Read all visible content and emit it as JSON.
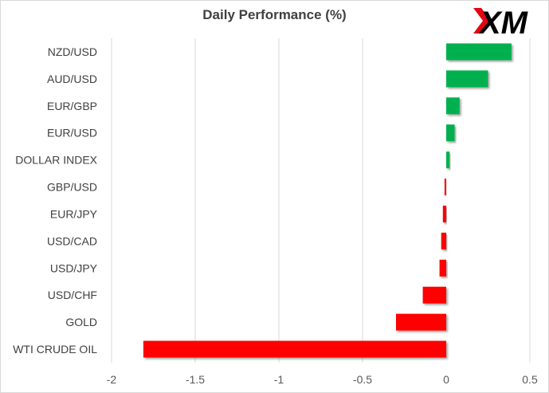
{
  "header": {
    "title": "Daily Performance (%)",
    "logo_text": "XM"
  },
  "colors": {
    "positive": "#00b050",
    "negative": "#ff0000",
    "grid": "#d9d9d9",
    "logo": "#000000",
    "logo_accent": "#e30613"
  },
  "chart_data": {
    "type": "bar",
    "orientation": "horizontal",
    "title": "Daily Performance (%)",
    "xlabel": "",
    "ylabel": "",
    "categories": [
      "NZD/USD",
      "AUD/USD",
      "EUR/GBP",
      "EUR/USD",
      "DOLLAR INDEX",
      "GBP/USD",
      "EUR/JPY",
      "USD/CAD",
      "USD/JPY",
      "USD/CHF",
      "GOLD",
      "WTI CRUDE OIL"
    ],
    "values": [
      0.39,
      0.25,
      0.08,
      0.05,
      0.02,
      -0.01,
      -0.02,
      -0.03,
      -0.04,
      -0.14,
      -0.3,
      -1.81
    ],
    "xlim": [
      -2,
      0.5
    ],
    "xticks": [
      -2,
      -1.5,
      -1,
      -0.5,
      0,
      0.5
    ],
    "xtick_labels": [
      "-2",
      "-1.5",
      "-1",
      "-0.5",
      "0",
      "0.5"
    ],
    "grid": "vertical",
    "legend": "none"
  }
}
